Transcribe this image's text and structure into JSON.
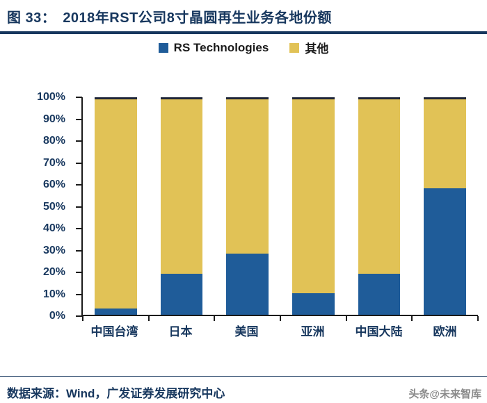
{
  "header": {
    "label": "图 33：",
    "title": "2018年RST公司8寸晶圆再生业务各地份额"
  },
  "chart_data": {
    "type": "bar",
    "stacked": true,
    "title": "2018年RST公司8寸晶圆再生业务各地份额",
    "categories": [
      "中国台湾",
      "日本",
      "美国",
      "亚洲",
      "中国大陆",
      "欧洲"
    ],
    "series": [
      {
        "name": "RS Technologies",
        "color": "#1F5C99",
        "values": [
          3,
          19,
          28,
          10,
          19,
          58
        ]
      },
      {
        "name": "其他",
        "color": "#E1C256",
        "values": [
          97,
          81,
          72,
          90,
          81,
          42
        ]
      }
    ],
    "xlabel": "",
    "ylabel": "",
    "ylim": [
      0,
      100
    ],
    "ytick_step": 10,
    "ytick_suffix": "%",
    "grid": false,
    "legend_position": "top",
    "colors": {
      "accent_navy": "#17375E",
      "axis": "#1a1a1a"
    }
  },
  "footer": {
    "source": "数据来源：Wind，广发证券发展研究中心"
  },
  "watermark": {
    "text": "头条@未来智库"
  }
}
